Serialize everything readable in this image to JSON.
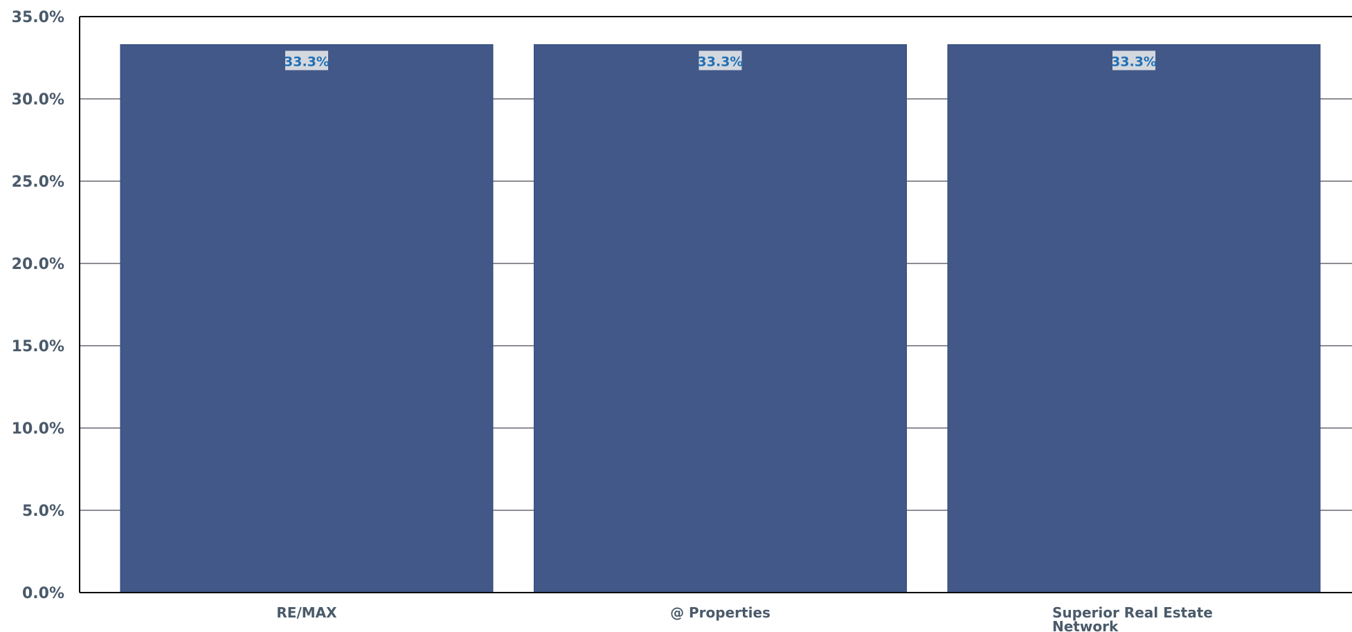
{
  "chart_data": {
    "type": "bar",
    "categories": [
      [
        "RE/MAX"
      ],
      [
        "@ Properties"
      ],
      [
        "Superior  Real Estate",
        "Network"
      ]
    ],
    "values": [
      33.3,
      33.3,
      33.3
    ],
    "data_labels": [
      "33.3%",
      "33.3%",
      "33.3%"
    ],
    "y_ticks": [
      0,
      5,
      10,
      15,
      20,
      25,
      30,
      35
    ],
    "y_tick_labels": [
      "0.0%",
      "5.0%",
      "10.0%",
      "15.0%",
      "20.0%",
      "25.0%",
      "30.0%",
      "35.0%"
    ],
    "ylim": [
      0,
      35
    ],
    "grid": true,
    "title": "",
    "xlabel": "",
    "ylabel": "",
    "colors": {
      "bar": "#415888",
      "bar_edge": "#35497a",
      "label_box": "#d4d8de",
      "label_text": "#1f6fb5",
      "axis": "#000000",
      "grid": "#1a1a2a",
      "tick_text": "#4a5a6a"
    }
  }
}
